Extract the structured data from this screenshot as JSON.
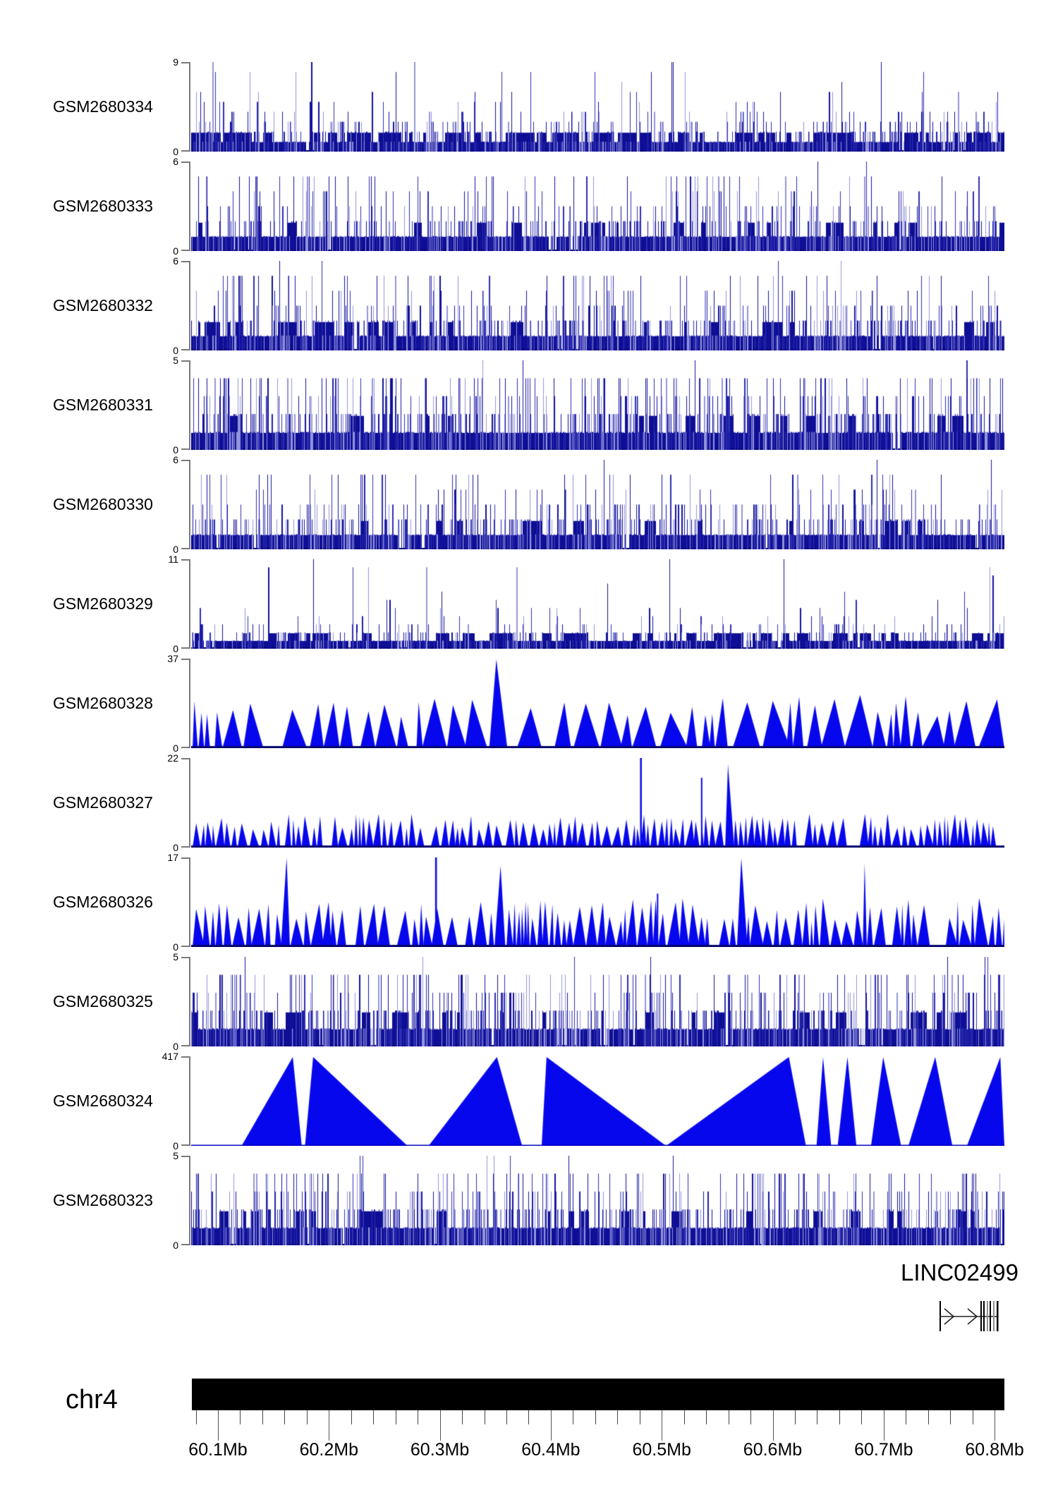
{
  "chart_data": {
    "type": "area",
    "title": "",
    "chromosome": "chr4",
    "x_range_mb": [
      60.08,
      60.81
    ],
    "x_axis": {
      "chrom_label": "chr4",
      "major_ticks": [
        {
          "mb": 60.1,
          "label": "60.1Mb"
        },
        {
          "mb": 60.2,
          "label": "60.2Mb"
        },
        {
          "mb": 60.3,
          "label": "60.3Mb"
        },
        {
          "mb": 60.4,
          "label": "60.4Mb"
        },
        {
          "mb": 60.5,
          "label": "60.5Mb"
        },
        {
          "mb": 60.6,
          "label": "60.6Mb"
        },
        {
          "mb": 60.7,
          "label": "60.7Mb"
        },
        {
          "mb": 60.8,
          "label": "60.8Mb"
        }
      ],
      "minor_step_mb": 0.02,
      "minor_range_mb": [
        60.08,
        60.8
      ]
    },
    "gene_annotation": {
      "label": "LINC02499",
      "strand": "forward"
    },
    "tracks": [
      {
        "name": "GSM2680334",
        "ymin": 0,
        "ymax": 9,
        "style": "spikes",
        "seed": 11,
        "density": 0.6,
        "grow": 0.52,
        "tall": 0.01,
        "band": 2
      },
      {
        "name": "GSM2680333",
        "ymin": 0,
        "ymax": 6,
        "style": "spikes",
        "seed": 22,
        "density": 0.62,
        "grow": 0.5,
        "tall": 0.008,
        "band": 1
      },
      {
        "name": "GSM2680332",
        "ymin": 0,
        "ymax": 6,
        "style": "spikes",
        "seed": 33,
        "density": 0.62,
        "grow": 0.5,
        "tall": 0.01,
        "band": 1
      },
      {
        "name": "GSM2680331",
        "ymin": 0,
        "ymax": 5,
        "style": "spikes",
        "seed": 44,
        "density": 0.65,
        "grow": 0.52,
        "tall": 0.012,
        "band": 1
      },
      {
        "name": "GSM2680330",
        "ymin": 0,
        "ymax": 6,
        "style": "spikes",
        "seed": 55,
        "density": 0.62,
        "grow": 0.5,
        "tall": 0.01,
        "band": 1
      },
      {
        "name": "GSM2680329",
        "ymin": 0,
        "ymax": 11,
        "style": "spikes",
        "seed": 66,
        "density": 0.5,
        "grow": 0.45,
        "tall": 0.008,
        "band": 2
      },
      {
        "name": "GSM2680328",
        "ymin": 0,
        "ymax": 37,
        "style": "triangles",
        "seed": 77,
        "wmin": 6,
        "wmax": 42,
        "hmin": 0.35,
        "hmax": 0.6,
        "tall": 0.07,
        "gap": 0.13,
        "spike": 0.015,
        "extra_spikes": []
      },
      {
        "name": "GSM2680327",
        "ymin": 0,
        "ymax": 22,
        "style": "triangles",
        "seed": 88,
        "wmin": 4,
        "wmax": 15,
        "hmin": 0.2,
        "hmax": 0.38,
        "tall": 0.012,
        "gap": 0.1,
        "spike": 0.03,
        "extra_spikes": [
          [
            0.552,
            1.0
          ]
        ]
      },
      {
        "name": "GSM2680326",
        "ymin": 0,
        "ymax": 17,
        "style": "triangles",
        "seed": 99,
        "wmin": 4,
        "wmax": 20,
        "hmin": 0.28,
        "hmax": 0.55,
        "tall": 0.04,
        "gap": 0.1,
        "spike": 0.02,
        "extra_spikes": [
          [
            0.3,
            1.0
          ]
        ]
      },
      {
        "name": "GSM2680325",
        "ymin": 0,
        "ymax": 5,
        "style": "spikes",
        "seed": 1010,
        "density": 0.65,
        "grow": 0.5,
        "tall": 0.012,
        "band": 1
      },
      {
        "name": "GSM2680324",
        "ymin": 0,
        "ymax": 417,
        "style": "big_triangles",
        "seed": 1111,
        "triangles": [
          [
            0.062,
            0.125,
            0.136,
            1.0
          ],
          [
            0.14,
            0.15,
            0.266,
            1.0
          ],
          [
            0.292,
            0.376,
            0.407,
            1.0
          ],
          [
            0.431,
            0.437,
            0.584,
            1.0
          ],
          [
            0.584,
            0.735,
            0.756,
            1.0
          ],
          [
            0.769,
            0.777,
            0.787,
            1.0
          ],
          [
            0.795,
            0.807,
            0.818,
            1.0
          ],
          [
            0.836,
            0.851,
            0.873,
            1.0
          ],
          [
            0.882,
            0.915,
            0.936,
            1.0
          ],
          [
            0.954,
            0.995,
            1.0,
            1.0
          ]
        ]
      },
      {
        "name": "GSM2680323",
        "ymin": 0,
        "ymax": 5,
        "style": "spikes",
        "seed": 1212,
        "density": 0.65,
        "grow": 0.5,
        "tall": 0.012,
        "band": 1
      }
    ]
  },
  "palette": {
    "spike_dark": "#10109b",
    "spike_mid": "#2e2eb2",
    "spike_light": "#9494da",
    "band": "#0e0e94",
    "baseline": "#06066e",
    "triangle_blue": "#0707ee",
    "axis_gray": "#7a7a7a",
    "ideogram_black": "#000000"
  },
  "labels": {
    "chromosome": "chr4",
    "gene": "LINC02499",
    "y_min": "0"
  }
}
